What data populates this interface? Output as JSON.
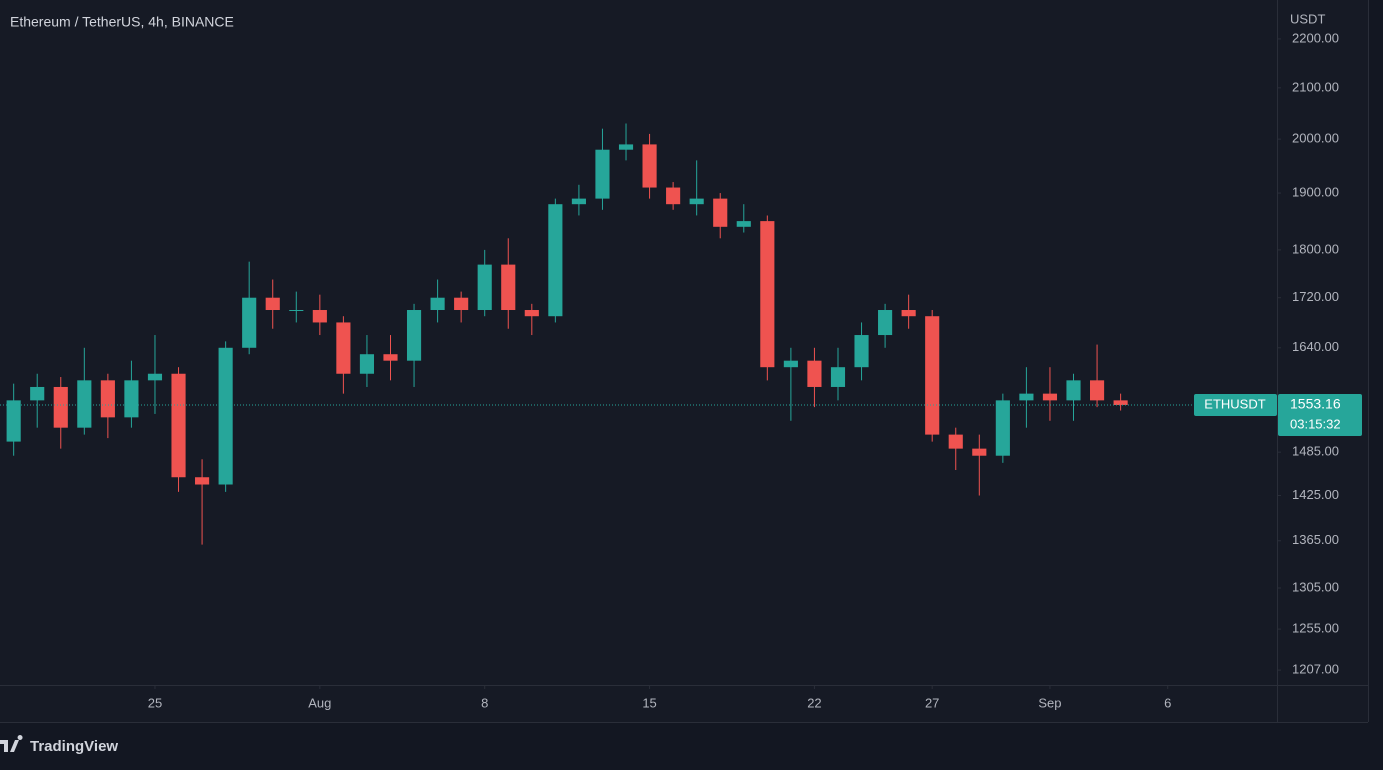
{
  "chart_data": {
    "type": "candlestick",
    "title": "Ethereum / TetherUS, 4h, BINANCE",
    "currency": "USDT",
    "brand": "TradingView",
    "symbol": "ETHUSDT",
    "last_price": 1553.16,
    "countdown": "03:15:32",
    "up_color": "#26a69a",
    "down_color": "#ef5350",
    "log_scale": true,
    "x": [
      19,
      20,
      21,
      22,
      23,
      24,
      25,
      26,
      27,
      28,
      29,
      30,
      31,
      32,
      33,
      34,
      35,
      36,
      37,
      38,
      39,
      40,
      41,
      42,
      43,
      44,
      45,
      46,
      47,
      48,
      49,
      50,
      51,
      52,
      53,
      54,
      55,
      56,
      57,
      58,
      59,
      60,
      61,
      62,
      63,
      64,
      65,
      66
    ],
    "open": [
      1500,
      1560,
      1580,
      1520,
      1590,
      1535,
      1590,
      1600,
      1450,
      1440,
      1640,
      1720,
      1700,
      1700,
      1680,
      1600,
      1630,
      1620,
      1700,
      1720,
      1700,
      1775,
      1700,
      1690,
      1880,
      1890,
      1980,
      1990,
      1910,
      1880,
      1890,
      1840,
      1850,
      1610,
      1620,
      1580,
      1610,
      1660,
      1700,
      1690,
      1510,
      1490,
      1480,
      1560,
      1570,
      1560,
      1590,
      1560
    ],
    "high": [
      1585,
      1600,
      1595,
      1640,
      1600,
      1620,
      1660,
      1610,
      1475,
      1650,
      1780,
      1750,
      1730,
      1725,
      1690,
      1660,
      1660,
      1710,
      1750,
      1730,
      1800,
      1820,
      1710,
      1890,
      1915,
      2020,
      2030,
      2010,
      1920,
      1960,
      1900,
      1880,
      1860,
      1640,
      1640,
      1640,
      1680,
      1710,
      1725,
      1700,
      1520,
      1510,
      1570,
      1610,
      1610,
      1600,
      1645,
      1570
    ],
    "low": [
      1480,
      1520,
      1490,
      1510,
      1505,
      1520,
      1540,
      1430,
      1360,
      1430,
      1630,
      1670,
      1680,
      1660,
      1570,
      1580,
      1590,
      1580,
      1680,
      1680,
      1690,
      1670,
      1660,
      1680,
      1860,
      1870,
      1960,
      1890,
      1870,
      1860,
      1820,
      1830,
      1590,
      1530,
      1550,
      1560,
      1590,
      1640,
      1670,
      1500,
      1460,
      1425,
      1470,
      1520,
      1530,
      1530,
      1550,
      1545
    ],
    "close": [
      1560,
      1580,
      1520,
      1590,
      1535,
      1590,
      1600,
      1450,
      1440,
      1640,
      1720,
      1700,
      1700,
      1680,
      1600,
      1630,
      1620,
      1700,
      1720,
      1700,
      1775,
      1700,
      1690,
      1880,
      1890,
      1980,
      1990,
      1910,
      1880,
      1890,
      1840,
      1850,
      1610,
      1620,
      1580,
      1610,
      1660,
      1700,
      1690,
      1510,
      1490,
      1480,
      1560,
      1570,
      1560,
      1590,
      1560,
      1553.16
    ],
    "xlim": [
      18.42,
      72.64
    ],
    "xticks": [
      25,
      {
        "value": 32,
        "label": "Aug"
      },
      {
        "value": 39,
        "label": "8"
      },
      {
        "value": 46,
        "label": "15"
      },
      {
        "value": 53,
        "label": "22"
      },
      {
        "value": 58,
        "label": "27"
      },
      {
        "value": 63,
        "label": "Sep"
      },
      {
        "value": 68,
        "label": "6"
      }
    ],
    "ylim": [
      1190,
      2283
    ],
    "yticks": [
      {
        "value": 2200,
        "label": "2200.00"
      },
      {
        "value": 2100,
        "label": "2100.00"
      },
      {
        "value": 2000,
        "label": "2000.00"
      },
      {
        "value": 1900,
        "label": "1900.00"
      },
      {
        "value": 1800,
        "label": "1800.00"
      },
      {
        "value": 1720,
        "label": "1720.00"
      },
      {
        "value": 1640,
        "label": "1640.00"
      },
      {
        "value": 1485,
        "label": "1485.00"
      },
      {
        "value": 1425,
        "label": "1425.00"
      },
      {
        "value": 1365,
        "label": "1365.00"
      },
      {
        "value": 1305,
        "label": "1305.00"
      },
      {
        "value": 1255,
        "label": "1255.00"
      },
      {
        "value": 1207,
        "label": "1207.00"
      }
    ]
  }
}
